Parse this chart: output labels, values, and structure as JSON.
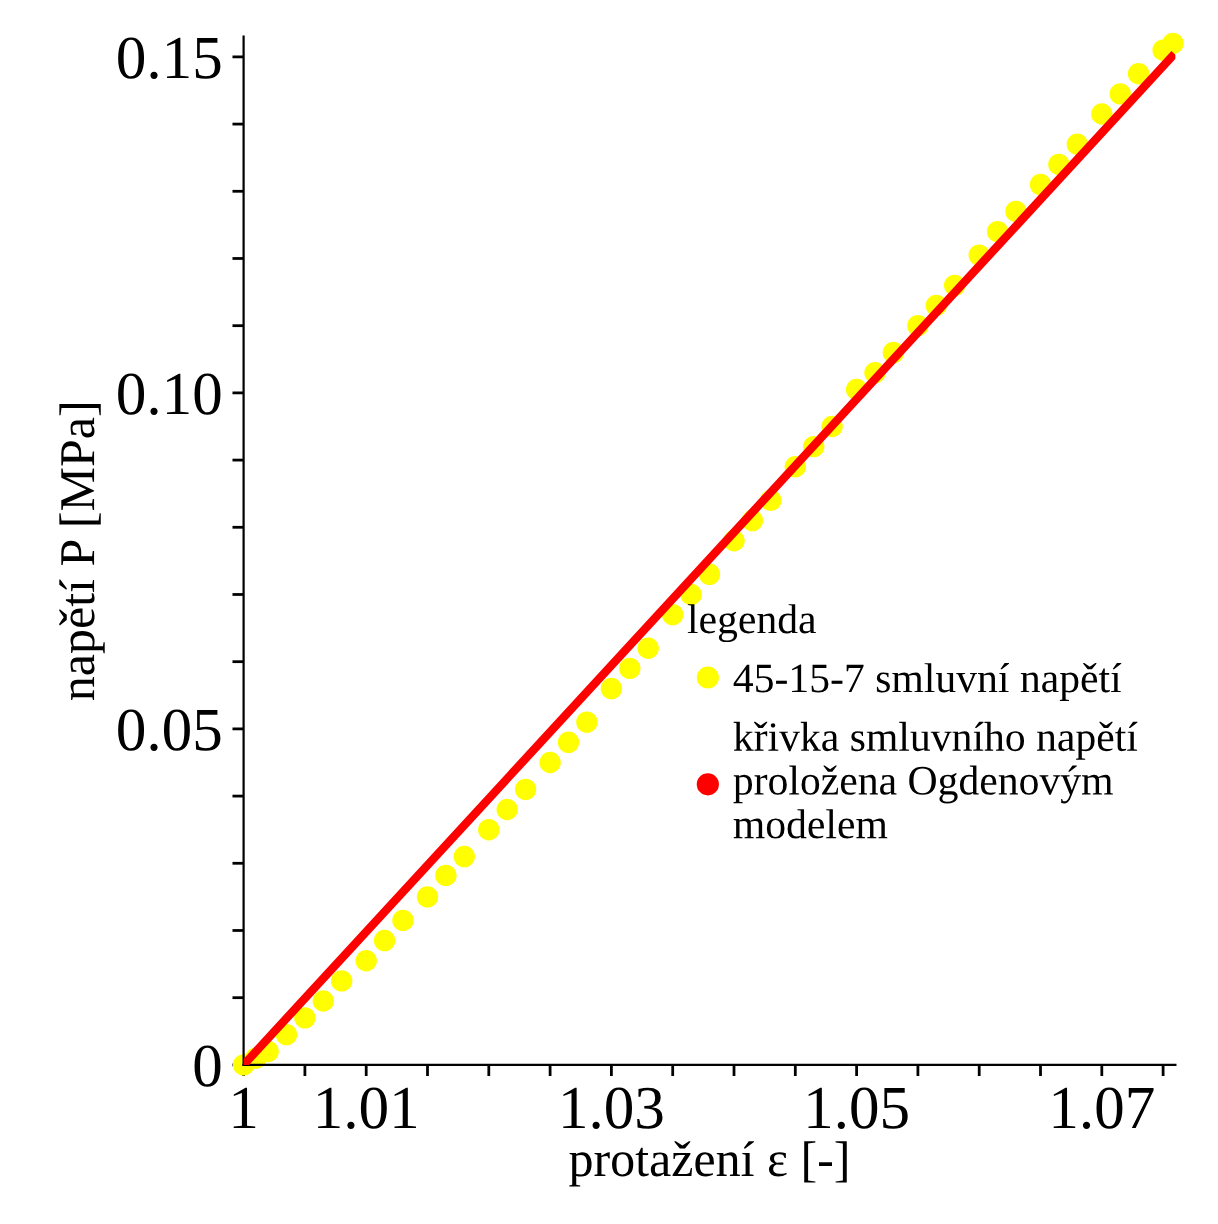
{
  "chart_data": {
    "type": "scatter",
    "xlabel": "protažení ε [-]",
    "ylabel": "napětí P [MPa]",
    "legend_title": "legenda",
    "legend": "right",
    "marker": "circle",
    "xlim": [
      1,
      1.076
    ],
    "ylim": [
      0,
      0.153
    ],
    "xticks": [
      1,
      {
        "value": 1.005,
        "label": null
      },
      1.01,
      {
        "value": 1.015,
        "label": null
      },
      {
        "value": 1.02,
        "label": null
      },
      {
        "value": 1.025,
        "label": null
      },
      1.03,
      {
        "value": 1.035,
        "label": null
      },
      {
        "value": 1.04,
        "label": null
      },
      {
        "value": 1.045,
        "label": null
      },
      1.05,
      {
        "value": 1.055,
        "label": null
      },
      {
        "value": 1.06,
        "label": null
      },
      {
        "value": 1.065,
        "label": null
      },
      1.07,
      {
        "value": 1.075,
        "label": null
      }
    ],
    "yticks": [
      0,
      {
        "value": 0.01,
        "label": null
      },
      {
        "value": 0.02,
        "label": null
      },
      {
        "value": 0.03,
        "label": null
      },
      {
        "value": 0.04,
        "label": null
      },
      0.05,
      {
        "value": 0.06,
        "label": null
      },
      {
        "value": 0.07,
        "label": null
      },
      {
        "value": 0.08,
        "label": null
      },
      {
        "value": 0.09,
        "label": null
      },
      {
        "value": 0.1,
        "label": "0.10"
      },
      {
        "value": 0.11,
        "label": null
      },
      {
        "value": 0.12,
        "label": null
      },
      {
        "value": 0.13,
        "label": null
      },
      {
        "value": 0.14,
        "label": null
      },
      0.15
    ],
    "series": [
      {
        "name": "45-15-7 smluvní napětí",
        "color": "#ffff00",
        "x": [
          1.0,
          1.001,
          1.002,
          1.0035,
          1.005,
          1.0065,
          1.008,
          1.01,
          1.0115,
          1.013,
          1.015,
          1.0165,
          1.018,
          1.02,
          1.0215,
          1.023,
          1.025,
          1.0265,
          1.028,
          1.03,
          1.0315,
          1.033,
          1.035,
          1.0365,
          1.038,
          1.04,
          1.0415,
          1.043,
          1.045,
          1.0465,
          1.048,
          1.05,
          1.0515,
          1.053,
          1.055,
          1.0565,
          1.058,
          1.06,
          1.0615,
          1.063,
          1.065,
          1.0665,
          1.068,
          1.07,
          1.0715,
          1.073,
          1.075,
          1.0758
        ],
        "values": [
          0.0,
          0.001,
          0.002,
          0.0045,
          0.007,
          0.0095,
          0.0125,
          0.0155,
          0.0185,
          0.0215,
          0.025,
          0.0282,
          0.031,
          0.035,
          0.038,
          0.041,
          0.045,
          0.048,
          0.051,
          0.056,
          0.059,
          0.062,
          0.067,
          0.07,
          0.073,
          0.078,
          0.081,
          0.084,
          0.089,
          0.092,
          0.095,
          0.1005,
          0.103,
          0.106,
          0.11,
          0.113,
          0.116,
          0.1205,
          0.124,
          0.127,
          0.131,
          0.134,
          0.137,
          0.1415,
          0.1445,
          0.1475,
          0.151,
          0.152
        ]
      },
      {
        "name": "křivka smluvního napětí proložena Ogdenovým modelem",
        "color": "#ff0000",
        "type": "line",
        "marker": "none",
        "x": [
          1.0,
          1.0757
        ],
        "values": [
          0.0,
          0.15
        ]
      }
    ]
  }
}
